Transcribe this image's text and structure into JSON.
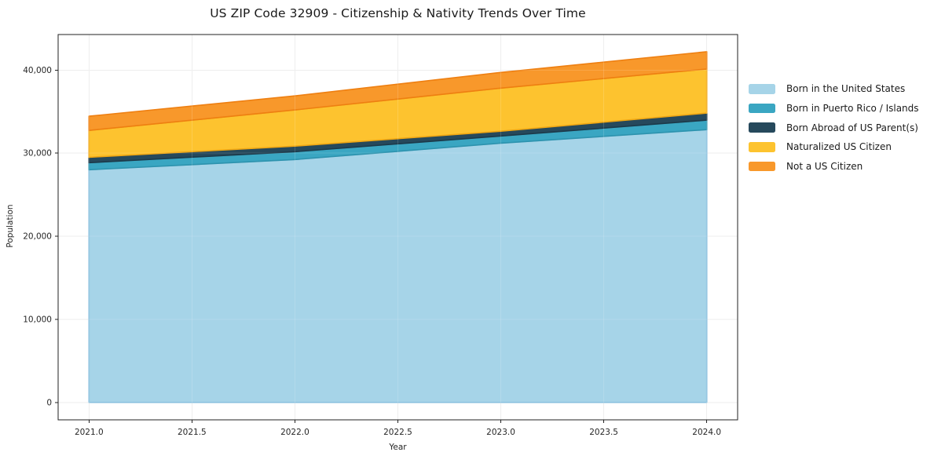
{
  "chart_data": {
    "type": "area",
    "stacked": true,
    "title": "US ZIP Code 32909 - Citizenship & Nativity Trends Over Time",
    "xlabel": "Year",
    "ylabel": "Population",
    "x": [
      2021,
      2022,
      2023,
      2024
    ],
    "series": [
      {
        "name": "Born in the United States",
        "values": [
          28000,
          29230,
          31210,
          32830
        ],
        "color": "#a6d4e8",
        "edge": "#85bedd"
      },
      {
        "name": "Born in Puerto Rico / Islands",
        "values": [
          850,
          950,
          860,
          1140
        ],
        "color": "#3aa6c2",
        "edge": "#2d93ae"
      },
      {
        "name": "Born Abroad of US Parent(s)",
        "values": [
          660,
          670,
          570,
          850
        ],
        "color": "#26495c",
        "edge": "#1c3a4a"
      },
      {
        "name": "Naturalized US Citizen",
        "values": [
          3230,
          4350,
          5190,
          5310
        ],
        "color": "#fdc32f",
        "edge": "#f0a713"
      },
      {
        "name": "Not a US Citizen",
        "values": [
          1710,
          1690,
          1890,
          2080
        ],
        "color": "#f8982b",
        "edge": "#ee7f11"
      }
    ],
    "totals": [
      34450,
      36890,
      39720,
      42210
    ],
    "xlim": [
      2020.85,
      2024.15
    ],
    "ylim": [
      -2100,
      44280
    ],
    "xticks": [
      2021,
      2021.5,
      2022,
      2022.5,
      2023,
      2023.5,
      2024
    ],
    "xtick_labels": [
      "2021.0",
      "2021.5",
      "2022.0",
      "2022.5",
      "2023.0",
      "2023.5",
      "2024.0"
    ],
    "yticks": [
      0,
      10000,
      20000,
      30000,
      40000
    ],
    "ytick_labels": [
      "0",
      "10,000",
      "20,000",
      "30,000",
      "40,000"
    ],
    "grid": true,
    "legend_position": "outside-right-top",
    "colors": {
      "grid": "#ebebeb",
      "spine": "#222222",
      "tick_text": "#262626",
      "plot_bg": "#ffffff"
    }
  }
}
